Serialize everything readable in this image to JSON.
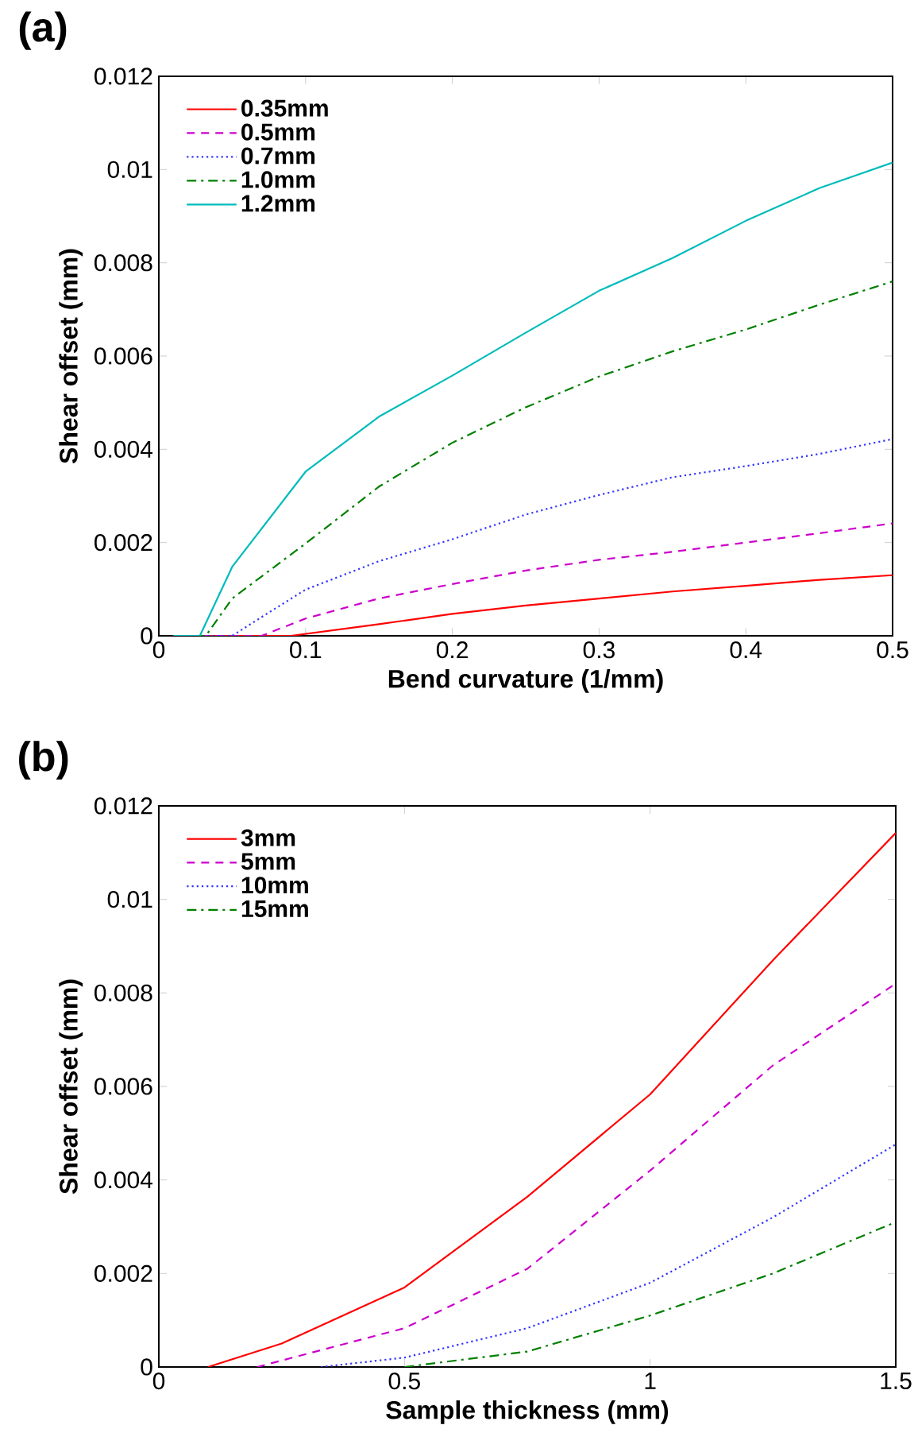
{
  "chart_data": [
    {
      "type": "line",
      "title": "(a)",
      "xlabel": "Bend curvature (1/mm)",
      "ylabel": "Shear offset (mm)",
      "xlim": [
        0,
        0.5
      ],
      "ylim": [
        0,
        0.012
      ],
      "xticks": [
        0,
        0.1,
        0.2,
        0.3,
        0.4,
        0.5
      ],
      "yticks": [
        0,
        0.002,
        0.004,
        0.006,
        0.008,
        0.01,
        0.012
      ],
      "grid": false,
      "legend": "top left",
      "series": [
        {
          "name": "0.35mm",
          "color": "#ff0000",
          "line_style": "solid",
          "x": [
            0.01,
            0.09,
            0.15,
            0.2,
            0.25,
            0.3,
            0.35,
            0.4,
            0.45,
            0.5
          ],
          "values": [
            0,
            0,
            0.00025,
            0.00047,
            0.00065,
            0.0008,
            0.00095,
            0.00107,
            0.0012,
            0.0013
          ]
        },
        {
          "name": "0.5mm",
          "color": "#cc00cc",
          "line_style": "dashed",
          "x": [
            0.01,
            0.07,
            0.1,
            0.15,
            0.2,
            0.25,
            0.3,
            0.35,
            0.4,
            0.45,
            0.5
          ],
          "values": [
            0,
            0,
            0.00037,
            0.0008,
            0.00111,
            0.0014,
            0.00163,
            0.0018,
            0.002,
            0.0022,
            0.00241
          ]
        },
        {
          "name": "0.7mm",
          "color": "#3333ff",
          "line_style": "dotted",
          "x": [
            0.01,
            0.05,
            0.075,
            0.1,
            0.15,
            0.2,
            0.25,
            0.3,
            0.35,
            0.4,
            0.45,
            0.5
          ],
          "values": [
            0,
            0,
            0.0005,
            0.00099,
            0.0016,
            0.00207,
            0.0026,
            0.00302,
            0.0034,
            0.00364,
            0.0039,
            0.00422
          ]
        },
        {
          "name": "1.0mm",
          "color": "#008000",
          "line_style": "dashdot",
          "x": [
            0.01,
            0.032,
            0.05,
            0.1,
            0.15,
            0.2,
            0.25,
            0.3,
            0.35,
            0.4,
            0.45,
            0.5
          ],
          "values": [
            0,
            0,
            0.0008,
            0.00198,
            0.0032,
            0.00414,
            0.0049,
            0.00556,
            0.0061,
            0.00657,
            0.0071,
            0.0076
          ]
        },
        {
          "name": "1.2mm",
          "color": "#00bbbb",
          "line_style": "solid",
          "x": [
            0.01,
            0.028,
            0.05,
            0.1,
            0.15,
            0.2,
            0.25,
            0.3,
            0.35,
            0.4,
            0.45,
            0.5
          ],
          "values": [
            0,
            0,
            0.00148,
            0.00352,
            0.0047,
            0.00558,
            0.0065,
            0.0074,
            0.0081,
            0.0089,
            0.0096,
            0.01015
          ]
        }
      ]
    },
    {
      "type": "line",
      "title": "(b)",
      "xlabel": "Sample thickness (mm)",
      "ylabel": "Shear offset (mm)",
      "xlim": [
        0,
        1.5
      ],
      "ylim": [
        0,
        0.012
      ],
      "xticks": [
        0,
        0.5,
        1,
        1.5
      ],
      "yticks": [
        0,
        0.002,
        0.004,
        0.006,
        0.008,
        0.01,
        0.012
      ],
      "grid": false,
      "legend": "top left",
      "series": [
        {
          "name": "3mm",
          "color": "#ff0000",
          "line_style": "solid",
          "x": [
            0.1,
            0.25,
            0.5,
            0.75,
            1.0,
            1.25,
            1.5
          ],
          "values": [
            0,
            0.0005,
            0.0017,
            0.00364,
            0.00583,
            0.0087,
            0.01142
          ]
        },
        {
          "name": "5mm",
          "color": "#cc00cc",
          "line_style": "dashed",
          "x": [
            0.2,
            0.5,
            0.75,
            1.0,
            1.25,
            1.5
          ],
          "values": [
            0,
            0.00083,
            0.0021,
            0.0042,
            0.00645,
            0.0082
          ]
        },
        {
          "name": "10mm",
          "color": "#3333ff",
          "line_style": "dotted",
          "x": [
            0.33,
            0.5,
            0.75,
            1.0,
            1.25,
            1.5
          ],
          "values": [
            0,
            0.0002,
            0.00083,
            0.0018,
            0.0032,
            0.00476
          ]
        },
        {
          "name": "15mm",
          "color": "#008000",
          "line_style": "dashdot",
          "x": [
            0.5,
            0.75,
            1.0,
            1.25,
            1.5
          ],
          "values": [
            0,
            0.00033,
            0.0011,
            0.002,
            0.0031
          ]
        }
      ]
    }
  ]
}
